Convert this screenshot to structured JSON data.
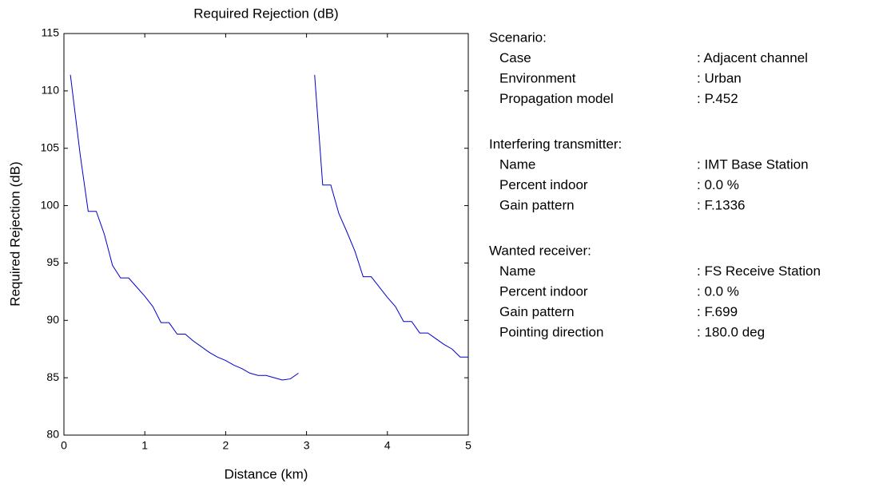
{
  "chart_data": {
    "type": "line",
    "title": "Required Rejection (dB)",
    "x_label": "Distance (km)",
    "y_label": "Required Rejection (dB)",
    "x": [
      0.08,
      0.2,
      0.3,
      0.4,
      0.5,
      0.6,
      0.7,
      0.8,
      0.9,
      1.0,
      1.1,
      1.2,
      1.3,
      1.4,
      1.5,
      1.6,
      1.7,
      1.8,
      1.9,
      2.0,
      2.1,
      2.2,
      2.3,
      2.4,
      2.5,
      2.6,
      2.7,
      2.8,
      2.9,
      3.0,
      3.1,
      3.2,
      3.3,
      3.4,
      3.5,
      3.6,
      3.7,
      3.8,
      3.9,
      4.0,
      4.1,
      4.2,
      4.3,
      4.4,
      4.5,
      4.6,
      4.7,
      4.8,
      4.9,
      5.0
    ],
    "series": [
      {
        "name": "Required Rejection",
        "color": "#0000cc",
        "values": [
          111.4,
          104.5,
          99.5,
          99.5,
          97.5,
          94.8,
          93.7,
          93.7,
          92.9,
          92.1,
          91.2,
          89.8,
          89.8,
          88.8,
          88.8,
          88.2,
          87.7,
          87.2,
          86.8,
          86.5,
          86.1,
          85.8,
          85.4,
          85.2,
          85.2,
          85.0,
          84.8,
          84.9,
          85.4,
          null,
          111.4,
          101.8,
          101.8,
          99.3,
          97.7,
          96.0,
          93.8,
          93.8,
          92.9,
          92.0,
          91.2,
          89.9,
          89.9,
          88.9,
          88.9,
          88.4,
          87.9,
          87.5,
          86.8,
          86.8
        ]
      }
    ],
    "xlim": [
      0,
      5
    ],
    "xticks": [
      0,
      1,
      2,
      3,
      4,
      5
    ],
    "ylim": [
      80,
      115
    ],
    "yticks": [
      80,
      85,
      90,
      95,
      100,
      105,
      110,
      115
    ],
    "grid": false
  },
  "info": {
    "sections": [
      {
        "heading": "Scenario:",
        "rows": [
          [
            "Case",
            ": Adjacent channel"
          ],
          [
            "Environment",
            ": Urban"
          ],
          [
            "Propagation model",
            ": P.452"
          ]
        ]
      },
      {
        "heading": "Interfering transmitter:",
        "rows": [
          [
            "Name",
            ": IMT Base Station"
          ],
          [
            "Percent indoor",
            ": 0.0 %"
          ],
          [
            "Gain pattern",
            ": F.1336"
          ]
        ]
      },
      {
        "heading": "Wanted receiver:",
        "rows": [
          [
            "Name",
            ": FS Receive Station"
          ],
          [
            "Percent indoor",
            ": 0.0 %"
          ],
          [
            "Gain pattern",
            ": F.699"
          ],
          [
            "Pointing direction",
            ": 180.0 deg"
          ]
        ]
      }
    ]
  }
}
